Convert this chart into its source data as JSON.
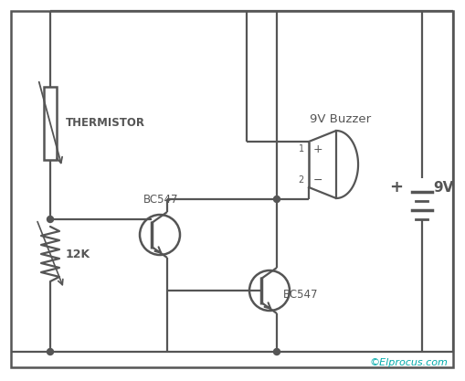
{
  "bg_color": "#ffffff",
  "line_color": "#555555",
  "watermark": "©Elprocus.com",
  "watermark_color": "#00aaaa",
  "thermistor_label": "THERMISTOR",
  "resistor_label": "12K",
  "buzzer_label": "9V Buzzer",
  "transistor1_label": "BC547",
  "transistor2_label": "BC547",
  "battery_label": "9V",
  "battery_sign": "+"
}
